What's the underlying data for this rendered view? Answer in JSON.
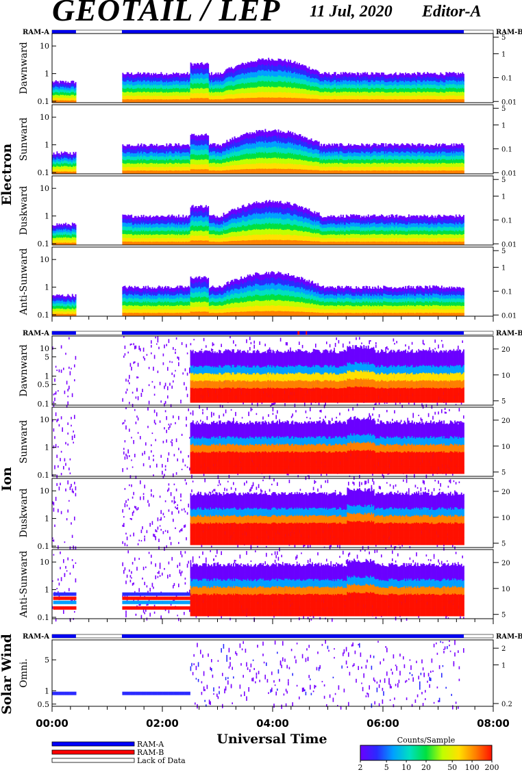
{
  "header": {
    "instrument": "GEOTAIL / LEP",
    "date": "11 Jul, 2020",
    "editor": "Editor-A"
  },
  "chart_data": {
    "type": "heatmap",
    "xlabel": "Universal Time",
    "x_ticks": [
      "00:00",
      "02:00",
      "04:00",
      "06:00",
      "08:00"
    ],
    "xlim": [
      "00:00",
      "08:00"
    ],
    "data_gaps": [
      [
        "00:26",
        "01:16"
      ],
      [
        "07:28",
        "08:00"
      ]
    ],
    "ram_label_left": "RAM-A",
    "ram_label_right": "RAM-B",
    "groups": [
      {
        "name": "Electron",
        "panels": [
          {
            "label": "Dawnward",
            "y_ticks_left": [
              "0.1",
              "1",
              "10"
            ],
            "y_ticks_right": [
              "0.01",
              "0.1",
              "1",
              "5"
            ]
          },
          {
            "label": "Sunward",
            "y_ticks_left": [
              "0.1",
              "1",
              "10"
            ],
            "y_ticks_right": [
              "0.01",
              "0.1",
              "1",
              "5"
            ]
          },
          {
            "label": "Duskward",
            "y_ticks_left": [
              "0.1",
              "1",
              "10"
            ],
            "y_ticks_right": [
              "0.01",
              "0.1",
              "1",
              "5"
            ]
          },
          {
            "label": "Anti-Sunward",
            "y_ticks_left": [
              "0.1",
              "1",
              "10"
            ],
            "y_ticks_right": [
              "0.01",
              "0.1",
              "1",
              "5"
            ]
          }
        ]
      },
      {
        "name": "Ion",
        "panels": [
          {
            "label": "Dawnward",
            "y_ticks_left": [
              "0.1",
              "0.5",
              "1",
              "5",
              "10"
            ],
            "y_ticks_right": [
              "5",
              "10",
              "20"
            ]
          },
          {
            "label": "Sunward",
            "y_ticks_left": [
              "0.1",
              "1",
              "10"
            ],
            "y_ticks_right": [
              "5",
              "10",
              "20"
            ]
          },
          {
            "label": "Duskward",
            "y_ticks_left": [
              "0.1",
              "1",
              "10"
            ],
            "y_ticks_right": [
              "5",
              "10",
              "20"
            ]
          },
          {
            "label": "Anti-Sunward",
            "y_ticks_left": [
              "0.1",
              "1",
              "10"
            ],
            "y_ticks_right": [
              "5",
              "10",
              "20"
            ]
          }
        ]
      },
      {
        "name": "Solar Wind",
        "panels": [
          {
            "label": "Omni.",
            "y_ticks_left": [
              "0.5",
              "1",
              "5"
            ],
            "y_ticks_right": [
              "0.2",
              "1",
              "2"
            ]
          }
        ]
      }
    ],
    "y_tick_labels_left_full": {
      "electron": [
        "0.1",
        "1",
        "10"
      ],
      "ion": [
        "0.1",
        "1",
        "10"
      ],
      "solar_wind": [
        "0.5",
        "1",
        "5"
      ]
    },
    "colorbar": {
      "title": "Counts/Sample",
      "ticks": [
        "2",
        "5",
        "10",
        "20",
        "50",
        "100",
        "200"
      ],
      "colors": [
        "#6a00ff",
        "#2a2aff",
        "#00a0ff",
        "#00e0c0",
        "#00e040",
        "#c0ff00",
        "#ffe000",
        "#ff8000",
        "#ff1000"
      ]
    },
    "legend": [
      {
        "label": "RAM-A",
        "color": "#0000ff"
      },
      {
        "label": "RAM-B",
        "color": "#ff0000"
      },
      {
        "label": "Lack of Data",
        "color": "#ffffff"
      }
    ]
  }
}
